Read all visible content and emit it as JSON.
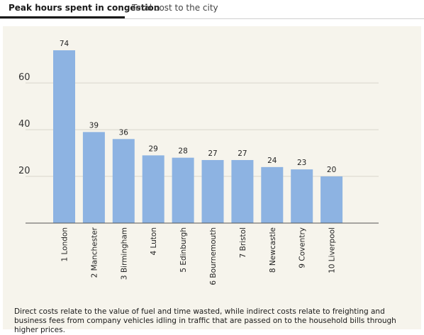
{
  "tabs": [
    {
      "label": "Peak hours spent in congestion",
      "active": true
    },
    {
      "label": "Total cost to the city",
      "active": false
    }
  ],
  "footnote": "Direct costs relate to the value of fuel and time wasted, while indirect costs relate to freighting and business fees from company vehicles idling in traffic that are passed on to the household bills through higher prices.",
  "colors": {
    "bar": "#8db3e2",
    "panel": "#f6f4ec",
    "grid": "#d9d6cc"
  },
  "chart_data": {
    "type": "bar",
    "categories": [
      "1 London",
      "2 Manchester",
      "3 Birmingham",
      "4 Luton",
      "5 Edinburgh",
      "6 Bournemouth",
      "7 Bristol",
      "8 Newcastle",
      "9 Coventry",
      "10 Liverpool"
    ],
    "values": [
      74,
      39,
      36,
      29,
      28,
      27,
      27,
      24,
      23,
      20
    ],
    "yticks": [
      20,
      40,
      60
    ],
    "ylim": [
      0,
      74
    ],
    "grid": true,
    "title": "",
    "xlabel": "",
    "ylabel": ""
  }
}
